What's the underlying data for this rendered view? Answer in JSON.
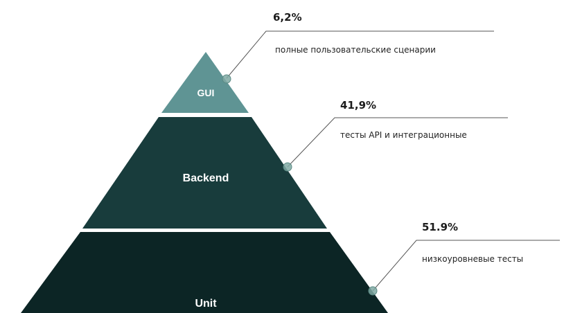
{
  "colors": {
    "gui": "#5f9494",
    "backend": "#183c3c",
    "unit": "#0c2525",
    "dot": "#7fa9a3",
    "leader": "#555555"
  },
  "layers": [
    {
      "label": "GUI",
      "percent": "6,2%",
      "description": "полные пользовательские сценарии"
    },
    {
      "label": "Backend",
      "percent": "41,9%",
      "description": "тесты API и интеграционные"
    },
    {
      "label": "Unit",
      "percent": "51.9%",
      "description": "низкоуровневые тесты"
    }
  ]
}
